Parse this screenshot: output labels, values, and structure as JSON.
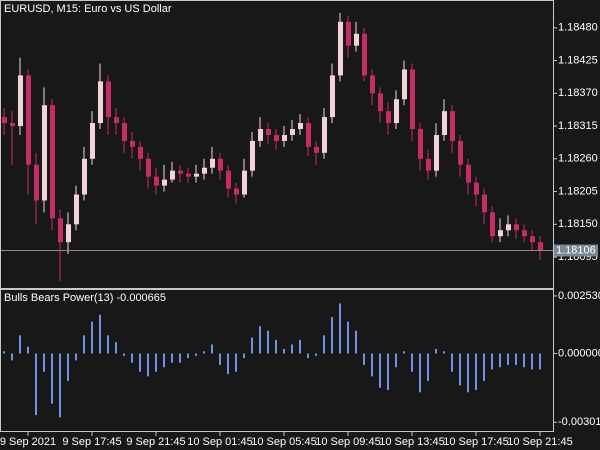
{
  "chart_data": [
    {
      "type": "candlestick",
      "title": "EURUSD, M15:  Euro vs US Dollar",
      "categories": [
        null,
        null,
        null,
        "9 Sep 2021",
        null,
        null,
        null,
        null,
        null,
        null,
        null,
        "9 Sep 17:45",
        null,
        null,
        null,
        null,
        null,
        null,
        null,
        "9 Sep 21:45",
        null,
        null,
        null,
        null,
        null,
        null,
        null,
        "10 Sep 01:45",
        null,
        null,
        null,
        null,
        null,
        null,
        null,
        "10 Sep 05:45",
        null,
        null,
        null,
        null,
        null,
        null,
        null,
        "10 Sep 09:45",
        null,
        null,
        null,
        null,
        null,
        null,
        null,
        "10 Sep 13:45",
        null,
        null,
        null,
        null,
        null,
        null,
        null,
        "10 Sep 17:45",
        null,
        null,
        null,
        null,
        null,
        null,
        null,
        "10 Sep 21:45"
      ],
      "open": [
        1.1833,
        1.1832,
        1.18315,
        1.184,
        1.1825,
        1.1819,
        1.1835,
        1.1816,
        1.1812,
        1.1815,
        1.182,
        1.1826,
        1.1832,
        1.1839,
        1.1833,
        1.1832,
        1.1829,
        1.1828,
        1.1826,
        1.1823,
        1.18215,
        1.18225,
        1.1824,
        1.18235,
        1.1823,
        1.18235,
        1.18245,
        1.1826,
        1.1824,
        1.1821,
        1.182,
        1.1824,
        1.1829,
        1.1831,
        1.183,
        1.1829,
        1.183,
        1.1831,
        1.1832,
        1.1828,
        1.1827,
        1.1833,
        1.184,
        1.1849,
        1.1845,
        1.1847,
        1.184,
        1.1837,
        1.1834,
        1.1832,
        1.1836,
        1.1841,
        1.1831,
        1.1826,
        1.1824,
        1.183,
        1.1834,
        1.1829,
        1.1825,
        1.1822,
        1.182,
        1.1817,
        1.1813,
        1.1814,
        1.1815,
        1.1814,
        1.1813,
        1.1812
      ],
      "high": [
        1.18345,
        1.1834,
        1.1843,
        1.1841,
        1.1827,
        1.1838,
        1.1836,
        1.18175,
        1.1817,
        1.18215,
        1.1828,
        1.1834,
        1.1842,
        1.184,
        1.18345,
        1.1833,
        1.18305,
        1.1829,
        1.1827,
        1.18245,
        1.1825,
        1.18255,
        1.1825,
        1.18245,
        1.1825,
        1.1826,
        1.1828,
        1.1827,
        1.1825,
        1.1822,
        1.1826,
        1.18305,
        1.1833,
        1.1832,
        1.1831,
        1.18315,
        1.18325,
        1.18335,
        1.1833,
        1.1829,
        1.18345,
        1.1842,
        1.18505,
        1.185,
        1.1849,
        1.1848,
        1.1841,
        1.1838,
        1.18355,
        1.18375,
        1.18425,
        1.1842,
        1.1832,
        1.18275,
        1.1832,
        1.1836,
        1.1835,
        1.183,
        1.1826,
        1.1823,
        1.1821,
        1.1818,
        1.1816,
        1.18165,
        1.1816,
        1.1815,
        1.1814,
        1.1813
      ],
      "low": [
        1.183,
        1.1825,
        1.183,
        1.182,
        1.1815,
        1.1817,
        1.1814,
        1.18055,
        1.181,
        1.1814,
        1.1819,
        1.1825,
        1.1831,
        1.183,
        1.183,
        1.1827,
        1.1826,
        1.1824,
        1.1821,
        1.182,
        1.18205,
        1.1822,
        1.1822,
        1.1822,
        1.1822,
        1.18225,
        1.18235,
        1.18225,
        1.18195,
        1.18185,
        1.18195,
        1.1823,
        1.1828,
        1.18285,
        1.18275,
        1.1828,
        1.1829,
        1.183,
        1.18265,
        1.1825,
        1.1826,
        1.1832,
        1.1839,
        1.1843,
        1.1844,
        1.1839,
        1.1835,
        1.1832,
        1.183,
        1.1831,
        1.1835,
        1.1829,
        1.1824,
        1.18225,
        1.1823,
        1.1829,
        1.1827,
        1.1823,
        1.182,
        1.1818,
        1.1815,
        1.1812,
        1.1812,
        1.1813,
        1.18125,
        1.1812,
        1.18105,
        1.1809
      ],
      "close": [
        1.1832,
        1.18315,
        1.184,
        1.1825,
        1.1819,
        1.1835,
        1.1816,
        1.1812,
        1.1815,
        1.182,
        1.1826,
        1.1832,
        1.1839,
        1.1833,
        1.1832,
        1.1829,
        1.1828,
        1.1826,
        1.1823,
        1.18215,
        1.18225,
        1.1824,
        1.18235,
        1.1823,
        1.18235,
        1.18245,
        1.1826,
        1.1824,
        1.1821,
        1.182,
        1.1824,
        1.1829,
        1.1831,
        1.183,
        1.1829,
        1.183,
        1.1831,
        1.1832,
        1.1828,
        1.1827,
        1.1833,
        1.184,
        1.1849,
        1.1845,
        1.1847,
        1.184,
        1.1837,
        1.1834,
        1.1832,
        1.1836,
        1.1841,
        1.1831,
        1.1826,
        1.1824,
        1.183,
        1.1834,
        1.1829,
        1.1825,
        1.1822,
        1.182,
        1.1817,
        1.1813,
        1.1814,
        1.1815,
        1.1814,
        1.1813,
        1.1812,
        1.18106
      ],
      "up_color": "#f4d2da",
      "down_color": "#c42c66",
      "current_price": 1.18106,
      "ylim": [
        1.18043,
        1.18525
      ],
      "yticks": [
        {
          "value": 1.1848,
          "label": "1.18480"
        },
        1.18425,
        {
          "value": 1.1837,
          "label": "1.18370"
        },
        1.18315,
        {
          "value": 1.1826,
          "label": "1.18260"
        },
        1.18205,
        {
          "value": 1.1815,
          "label": "1.18150"
        },
        1.18095
      ]
    },
    {
      "type": "bar",
      "title": "Bulls Bears Power(13) -0.000665",
      "color": "#6f93e6",
      "values": [
        0.0001,
        -0.0003,
        0.0008,
        0.0003,
        -0.0027,
        -0.0008,
        -0.0022,
        -0.0028,
        -0.0012,
        -0.0003,
        0.0008,
        0.0014,
        0.0017,
        0.0008,
        0.0005,
        -0.0001,
        -0.0004,
        -0.0008,
        -0.001,
        -0.0008,
        -0.0006,
        -0.0004,
        -0.0004,
        -0.0002,
        -0.0001,
        0.0001,
        0.0004,
        -0.0005,
        -0.0009,
        -0.0008,
        -0.0002,
        0.0007,
        0.0012,
        0.001,
        0.0006,
        0.0002,
        0.0004,
        0.0006,
        -0.0002,
        -0.0001,
        0.0008,
        0.0016,
        0.0022,
        0.0014,
        0.001,
        -0.0005,
        -0.001,
        -0.0015,
        -0.0016,
        -0.0006,
        0.0001,
        -0.0008,
        -0.0017,
        -0.0012,
        0.0002,
        0.0001,
        -0.0008,
        -0.0014,
        -0.0017,
        -0.0016,
        -0.0012,
        -0.0007,
        -0.0006,
        -0.0005,
        -0.0005,
        -0.0006,
        -0.0007,
        -0.0007
      ],
      "ylim": [
        -0.0034,
        0.00279
      ],
      "yticks": [
        {
          "value": 0.00253,
          "label": "0.002530"
        },
        {
          "value": 0,
          "label": "0.000000"
        },
        {
          "value": -0.003013,
          "label": "-0.003013"
        }
      ]
    }
  ]
}
